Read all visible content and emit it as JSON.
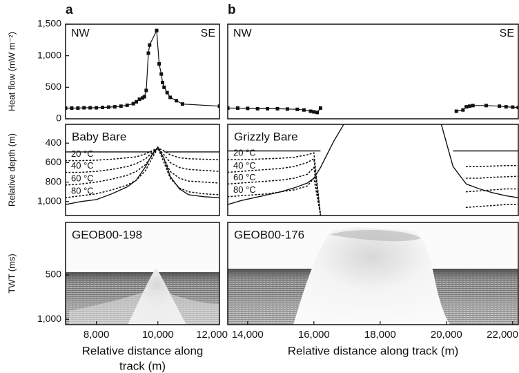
{
  "chart_data": [
    {
      "type": "line",
      "panel": "a",
      "left_label": "NW",
      "right_label": "SE",
      "ylabel": "Heat flow (mW m⁻²)",
      "x": [
        7000,
        7200,
        7400,
        7600,
        7800,
        8000,
        8200,
        8400,
        8600,
        8800,
        9000,
        9200,
        9300,
        9400,
        9500,
        9560,
        9620,
        9690,
        9730,
        9960,
        10040,
        10110,
        10150,
        10200,
        10300,
        10400,
        10600,
        10800,
        12000
      ],
      "values": [
        170,
        170,
        170,
        175,
        175,
        175,
        180,
        185,
        190,
        200,
        215,
        240,
        270,
        310,
        330,
        350,
        450,
        1040,
        1170,
        1400,
        870,
        710,
        575,
        500,
        415,
        340,
        287,
        234,
        200
      ],
      "color": "#111111",
      "xlim": [
        7000,
        12000
      ],
      "ylim": [
        0,
        1500
      ],
      "yticks": [
        0,
        500,
        {
          "value": 1000,
          "label": "1,000"
        },
        {
          "value": 1500,
          "label": "1,500"
        }
      ]
    },
    {
      "type": "profile",
      "label": "Baby Bare",
      "ylabel": "Relative depth (m)",
      "x": [
        7000,
        7500,
        8000,
        8500,
        9000,
        9300,
        9600,
        9800,
        10000,
        10200,
        10400,
        10700,
        11000,
        11500,
        12000
      ],
      "series": [
        {
          "style": "solid",
          "color": "#111111",
          "values": [
            1030,
            1000,
            980,
            920,
            850,
            780,
            640,
            520,
            440,
            560,
            740,
            870,
            930,
            950,
            960
          ]
        },
        {
          "style": "solid",
          "color": "#111111",
          "values": [
            490,
            490,
            490,
            490,
            490,
            490,
            490,
            490,
            null,
            490,
            490,
            490,
            490,
            490,
            490
          ]
        },
        {
          "name": "20 °C",
          "style": "dotted",
          "color": "#111111",
          "values": [
            580,
            580,
            575,
            565,
            550,
            540,
            510,
            480,
            450,
            480,
            520,
            550,
            560,
            565,
            570
          ]
        },
        {
          "name": "40 °C",
          "style": "dotted",
          "color": "#111111",
          "values": [
            700,
            700,
            690,
            670,
            640,
            610,
            560,
            500,
            450,
            520,
            600,
            650,
            670,
            680,
            690
          ]
        },
        {
          "name": "60 °C",
          "style": "dotted",
          "color": "#111111",
          "values": [
            830,
            820,
            800,
            770,
            730,
            690,
            620,
            530,
            450,
            560,
            690,
            760,
            790,
            800,
            810
          ]
        },
        {
          "name": "80 °C",
          "style": "dotted",
          "color": "#111111",
          "values": [
            960,
            940,
            920,
            880,
            830,
            780,
            680,
            560,
            450,
            600,
            760,
            860,
            900,
            920,
            930
          ]
        }
      ],
      "xlim": [
        7000,
        12000
      ],
      "ylim": [
        207,
        1143
      ],
      "y_reversed": true,
      "yticks": [
        400,
        600,
        800,
        {
          "value": 1000,
          "label": "1,000"
        }
      ]
    },
    {
      "type": "seismic",
      "label": "GEOB00-198",
      "ylabel": "TWT (ms)",
      "xlabel": [
        "Relative distance along",
        "track (m)"
      ],
      "xlim": [
        7000,
        12000
      ],
      "ylim": [
        -90,
        1060
      ],
      "y_reversed": true,
      "yticks": [
        500,
        {
          "value": 1000,
          "label": "1,000"
        }
      ],
      "xticks": [
        {
          "value": 8000,
          "label": "8,000"
        },
        {
          "value": 10000,
          "label": "10,000"
        },
        {
          "value": 12000,
          "label": "12,000"
        }
      ]
    },
    {
      "type": "line",
      "panel": "b",
      "left_label": "NW",
      "right_label": "SE",
      "x": [
        13400,
        13700,
        14000,
        14300,
        14600,
        14900,
        15200,
        15500,
        15700,
        15900,
        16000,
        16100,
        16200,
        18000,
        20300,
        20500,
        20600,
        20700,
        20800,
        21200,
        21600,
        21800,
        22000,
        22170
      ],
      "values": [
        170,
        170,
        165,
        160,
        160,
        160,
        155,
        150,
        140,
        120,
        110,
        100,
        170,
        null,
        120,
        140,
        190,
        200,
        210,
        210,
        200,
        190,
        185,
        180
      ],
      "color": "#111111",
      "xlim": [
        13400,
        22170
      ],
      "ylim": [
        0,
        1500
      ]
    },
    {
      "type": "profile",
      "label": "Grizzly Bare",
      "x": [
        13400,
        13800,
        14200,
        14600,
        15000,
        15400,
        15800,
        16000,
        16200,
        16600,
        17000,
        19800,
        20200,
        20600,
        21000,
        21400,
        21800,
        22170
      ],
      "series": [
        {
          "style": "solid",
          "color": "#111111",
          "values": [
            1030,
            990,
            960,
            930,
            900,
            860,
            810,
            760,
            650,
            380,
            150,
            150,
            640,
            820,
            870,
            910,
            940,
            960
          ]
        },
        {
          "style": "solid",
          "color": "#111111",
          "values": [
            480,
            480,
            480,
            480,
            480,
            480,
            480,
            480,
            480,
            null,
            null,
            null,
            480,
            480,
            480,
            480,
            480,
            480
          ]
        },
        {
          "name": "20 °C",
          "style": "dotted",
          "color": "#111111",
          "values": [
            570,
            570,
            565,
            560,
            555,
            545,
            520,
            500,
            1140,
            null,
            null,
            null,
            null,
            640,
            640,
            635,
            630,
            630
          ]
        },
        {
          "name": "40 °C",
          "style": "dotted",
          "color": "#111111",
          "values": [
            700,
            690,
            680,
            670,
            660,
            640,
            600,
            560,
            1140,
            null,
            null,
            null,
            null,
            760,
            760,
            750,
            745,
            740
          ]
        },
        {
          "name": "60 °C",
          "style": "dotted",
          "color": "#111111",
          "values": [
            820,
            810,
            800,
            790,
            780,
            760,
            720,
            650,
            1140,
            null,
            null,
            null,
            null,
            900,
            890,
            880,
            870,
            870
          ]
        },
        {
          "name": "80 °C",
          "style": "dotted",
          "color": "#111111",
          "values": [
            950,
            940,
            930,
            920,
            900,
            880,
            840,
            760,
            1140,
            null,
            null,
            null,
            null,
            1060,
            1050,
            1040,
            1030,
            1030
          ]
        }
      ],
      "xlim": [
        13400,
        22170
      ],
      "ylim": [
        207,
        1143
      ],
      "y_reversed": true
    },
    {
      "type": "seismic",
      "label": "GEOB00-176",
      "xlabel": "Relative distance along track (m)",
      "xlim": [
        13400,
        22170
      ],
      "ylim": [
        -90,
        1060
      ],
      "y_reversed": true,
      "xticks": [
        {
          "value": 14000,
          "label": "14,000"
        },
        {
          "value": 16000,
          "label": "16,000"
        },
        {
          "value": 18000,
          "label": "18,000"
        },
        {
          "value": 20000,
          "label": "20,000"
        },
        {
          "value": 22000,
          "label": "22,000"
        }
      ]
    }
  ]
}
